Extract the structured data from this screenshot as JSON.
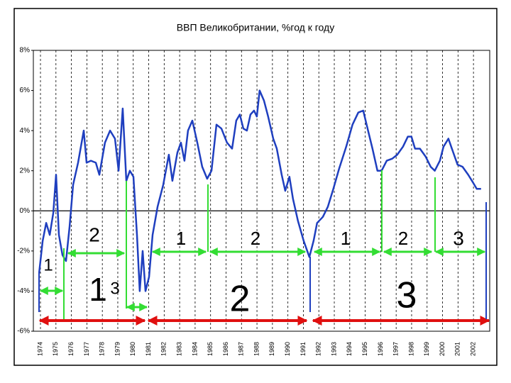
{
  "chart_data": {
    "type": "line",
    "title": "ВВП Великобритании, %год к году",
    "x": [
      1973.91,
      1974.14,
      1974.37,
      1974.6,
      1974.83,
      1975.01,
      1975.19,
      1975.42,
      1975.65,
      1975.88,
      1976.11,
      1976.43,
      1976.8,
      1976.98,
      1977.26,
      1977.58,
      1977.81,
      1978.17,
      1978.5,
      1978.82,
      1979.05,
      1979.32,
      1979.55,
      1979.78,
      1980.01,
      1980.24,
      1980.42,
      1980.61,
      1980.79,
      1981.02,
      1981.25,
      1981.57,
      1981.94,
      1982.3,
      1982.53,
      1982.85,
      1983.08,
      1983.31,
      1983.54,
      1983.82,
      1984.14,
      1984.46,
      1984.78,
      1985.06,
      1985.38,
      1985.7,
      1986.06,
      1986.39,
      1986.66,
      1986.89,
      1987.12,
      1987.35,
      1987.58,
      1987.81,
      1987.99,
      1988.17,
      1988.45,
      1988.72,
      1989.05,
      1989.28,
      1989.6,
      1989.83,
      1990.1,
      1990.33,
      1990.65,
      1991.02,
      1991.39,
      1991.66,
      1991.89,
      1992.26,
      1992.58,
      1992.94,
      1993.31,
      1993.77,
      1994.18,
      1994.55,
      1994.87,
      1995.15,
      1995.47,
      1995.79,
      1996.06,
      1996.39,
      1996.75,
      1997.07,
      1997.44,
      1997.76,
      1997.99,
      1998.22,
      1998.54,
      1998.91,
      1999.23,
      1999.5,
      1999.83,
      2000.06,
      2000.38,
      2000.65,
      2000.97,
      2001.29,
      2001.66,
      2001.98,
      2002.21,
      2002.49
    ],
    "values": [
      -3.1,
      -1.5,
      -0.6,
      -1.2,
      -0.1,
      1.8,
      -1.2,
      -2.2,
      -2.5,
      -0.8,
      1.3,
      2.4,
      4.0,
      2.4,
      2.5,
      2.4,
      1.8,
      3.4,
      4.0,
      3.6,
      2.0,
      5.1,
      1.5,
      2.0,
      1.7,
      -1.2,
      -4.0,
      -2.0,
      -4.0,
      -3.3,
      -1.2,
      0.2,
      1.3,
      2.8,
      1.5,
      2.9,
      3.4,
      2.5,
      4.0,
      4.5,
      3.4,
      2.2,
      1.6,
      2.0,
      4.3,
      4.1,
      3.4,
      3.1,
      4.5,
      4.8,
      4.1,
      4.0,
      4.8,
      5.0,
      4.7,
      6.0,
      5.5,
      4.7,
      3.6,
      3.1,
      1.8,
      1.0,
      1.7,
      0.6,
      -0.5,
      -1.5,
      -2.3,
      -1.5,
      -0.6,
      -0.3,
      0.2,
      1.1,
      2.1,
      3.2,
      4.3,
      4.9,
      5.0,
      4.1,
      3.1,
      2.0,
      2.0,
      2.5,
      2.6,
      2.8,
      3.2,
      3.7,
      3.7,
      3.1,
      3.1,
      2.7,
      2.2,
      2.0,
      2.5,
      3.2,
      3.6,
      3.0,
      2.3,
      2.2,
      1.8,
      1.4,
      1.1,
      1.1
    ],
    "color": "#1f3fbf",
    "xlim": [
      1973.54,
      2003.05
    ],
    "xticks": [
      1974,
      1975,
      1976,
      1977,
      1978,
      1979,
      1980,
      1981,
      1982,
      1983,
      1984,
      1985,
      1986,
      1987,
      1988,
      1989,
      1990,
      1991,
      1992,
      1993,
      1994,
      1995,
      1996,
      1997,
      1998,
      1999,
      2000,
      2001,
      2002
    ],
    "ylim": [
      -6,
      8
    ],
    "yticks": [
      {
        "value": -6,
        "label": "-6%"
      },
      {
        "value": -4,
        "label": "-4%"
      },
      {
        "value": -2,
        "label": "-2%"
      },
      {
        "value": 0,
        "label": "0%"
      },
      {
        "value": 2,
        "label": "2%"
      },
      {
        "value": 4,
        "label": "4%"
      },
      {
        "value": 6,
        "label": "6%"
      },
      {
        "value": 8,
        "label": "8%"
      }
    ],
    "grid": true,
    "annotations": [
      "1",
      "2",
      "1",
      "2",
      "1",
      "2",
      "3",
      "1",
      "3",
      "2",
      "3"
    ]
  }
}
